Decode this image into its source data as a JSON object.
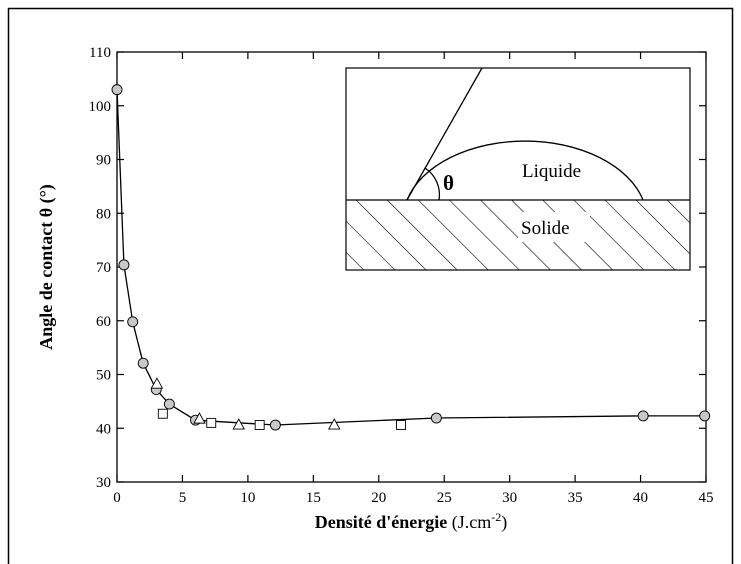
{
  "chart_data": {
    "type": "scatter",
    "ylabel": "Angle de contact θ (°)",
    "xlabel_parts": [
      "Densité d'énergie",
      "(J.cm",
      "-2",
      ")"
    ],
    "xlim": [
      0,
      45
    ],
    "ylim": [
      30,
      110
    ],
    "xticks": [
      0,
      5,
      10,
      15,
      20,
      25,
      30,
      35,
      40,
      45
    ],
    "yticks": [
      30,
      40,
      50,
      60,
      70,
      80,
      90,
      100,
      110
    ],
    "series": [
      {
        "marker": "circle",
        "color": "#c8c8c8",
        "line": true,
        "x": [
          0,
          0.53,
          1.2,
          2.0,
          3.0,
          4.0,
          6.0,
          12.1,
          24.4,
          40.2,
          44.9
        ],
        "values": [
          103,
          70.4,
          59.8,
          52.1,
          47.2,
          44.5,
          41.5,
          40.6,
          41.9,
          42.3,
          42.3
        ]
      },
      {
        "marker": "square",
        "color": "#ffffff",
        "line": false,
        "x": [
          3.5,
          7.2,
          10.9,
          21.7
        ],
        "values": [
          42.7,
          41.0,
          40.6,
          40.6
        ]
      },
      {
        "marker": "triangle",
        "color": "#ffffff",
        "line": false,
        "x": [
          3.05,
          6.3,
          9.3,
          16.6
        ],
        "values": [
          48.2,
          41.7,
          40.6,
          40.6
        ]
      }
    ],
    "inset": {
      "theta": "θ",
      "liquid": "Liquide",
      "solid": "Solide"
    }
  }
}
